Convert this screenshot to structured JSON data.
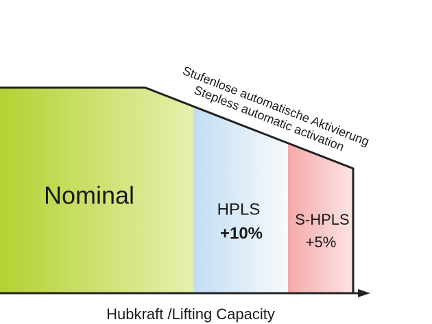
{
  "annotation": {
    "line1": "Stufenlose automatische Aktivierung",
    "line2": "Stepless automatic activation"
  },
  "regions": [
    {
      "label": "Nominal"
    },
    {
      "label": "HPLS",
      "value": "+10%"
    },
    {
      "label": "S-HPLS",
      "value": "+5%"
    }
  ],
  "axis_label": "Hubkraft /Lifting Capacity"
}
